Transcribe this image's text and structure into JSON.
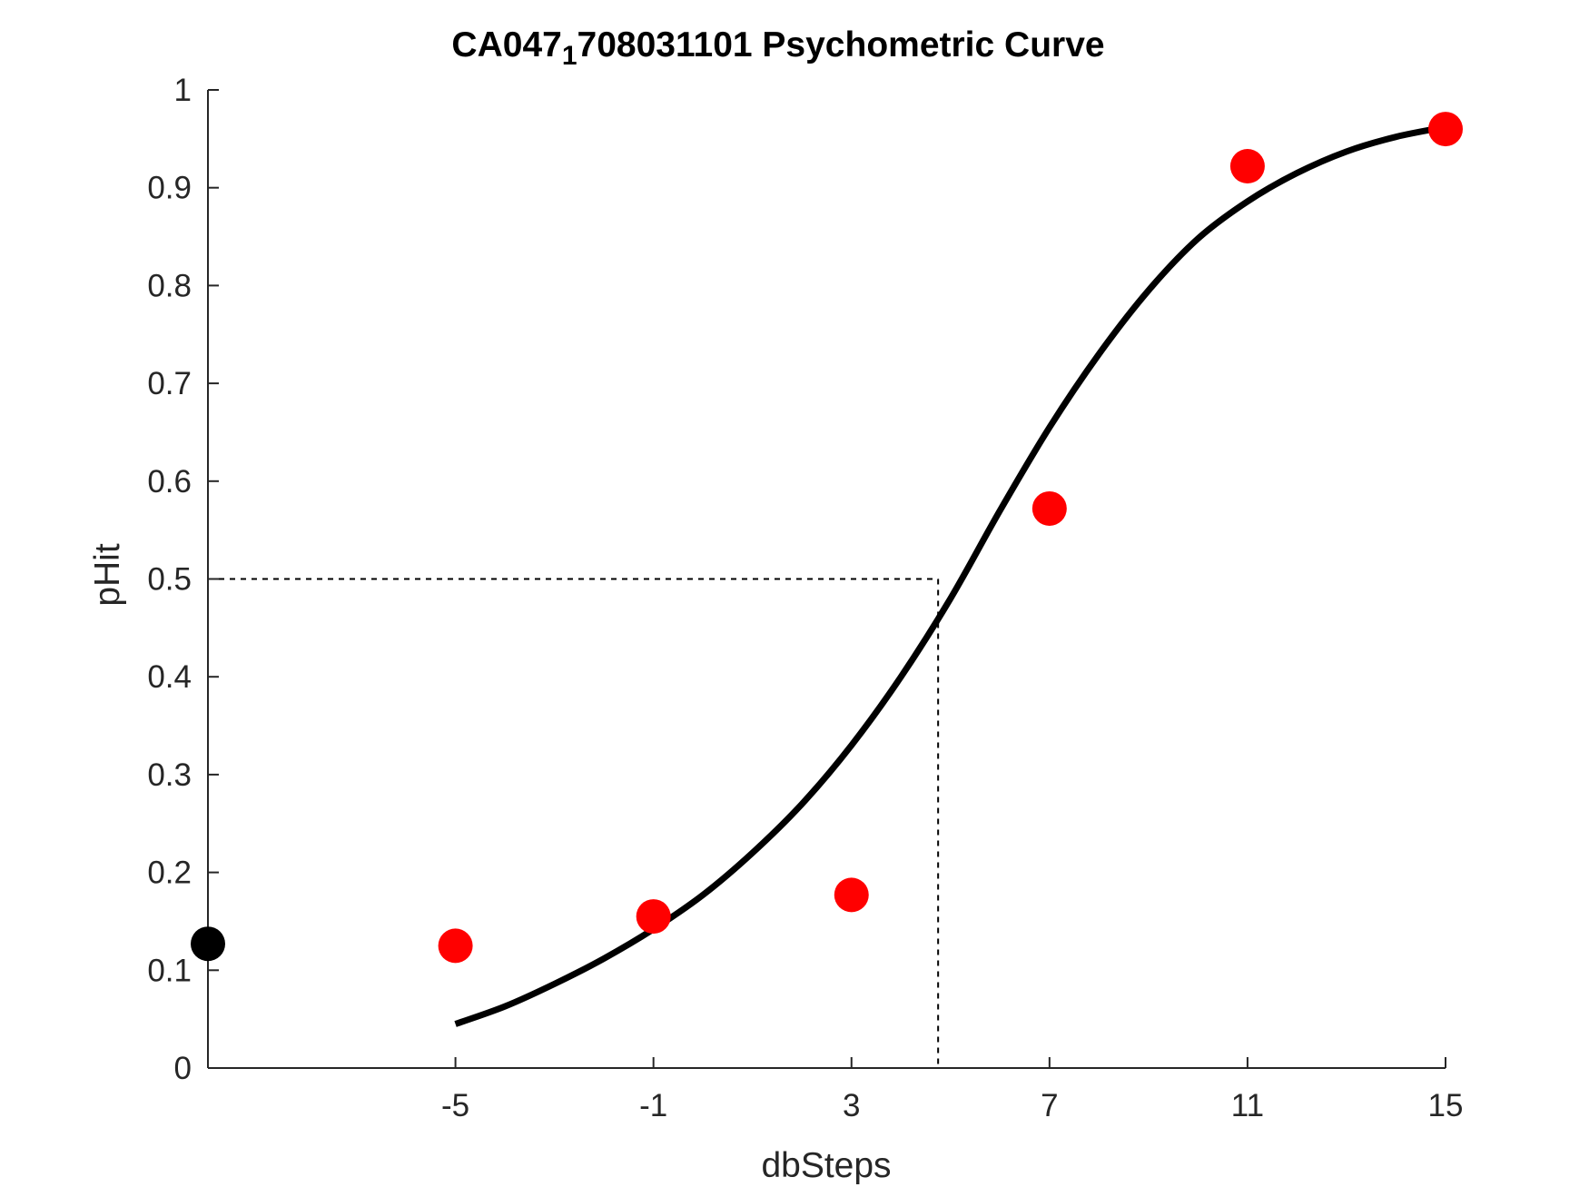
{
  "chart_data": {
    "type": "scatter",
    "title_main": "CA047",
    "title_subscript": "1",
    "title_rest": "708031101 Psychometric Curve",
    "xlabel": "dbSteps",
    "ylabel": "pHit",
    "xlim": [
      -10,
      15
    ],
    "ylim": [
      0,
      1
    ],
    "x_ticks": [
      -5,
      -1,
      3,
      7,
      11,
      15
    ],
    "x_tick_labels": [
      "-5",
      "-1",
      "3",
      "7",
      "11",
      "15"
    ],
    "y_ticks": [
      0,
      0.1,
      0.2,
      0.3,
      0.4,
      0.5,
      0.6,
      0.7,
      0.8,
      0.9,
      1
    ],
    "y_tick_labels": [
      "0",
      "0.1",
      "0.2",
      "0.3",
      "0.4",
      "0.5",
      "0.6",
      "0.7",
      "0.8",
      "0.9",
      "1"
    ],
    "grid": false,
    "baseline_point": {
      "x": -10,
      "y": 0.127,
      "color": "#000000"
    },
    "points": {
      "color": "#ff0000",
      "x": [
        -5,
        -1,
        3,
        7,
        11,
        15
      ],
      "y": [
        0.125,
        0.155,
        0.177,
        0.572,
        0.922,
        0.96
      ]
    },
    "fit_curve": {
      "color": "#000000",
      "x": [
        -5,
        -4,
        -3,
        -2,
        -1,
        0,
        1,
        2,
        3,
        4,
        5,
        6,
        7,
        8,
        9,
        10,
        11,
        12,
        13,
        14,
        15
      ],
      "y": [
        0.045,
        0.063,
        0.086,
        0.112,
        0.142,
        0.177,
        0.22,
        0.27,
        0.33,
        0.4,
        0.48,
        0.57,
        0.655,
        0.73,
        0.795,
        0.848,
        0.886,
        0.915,
        0.937,
        0.952,
        0.962
      ]
    },
    "threshold": {
      "x": 4.75,
      "y": 0.5
    }
  }
}
